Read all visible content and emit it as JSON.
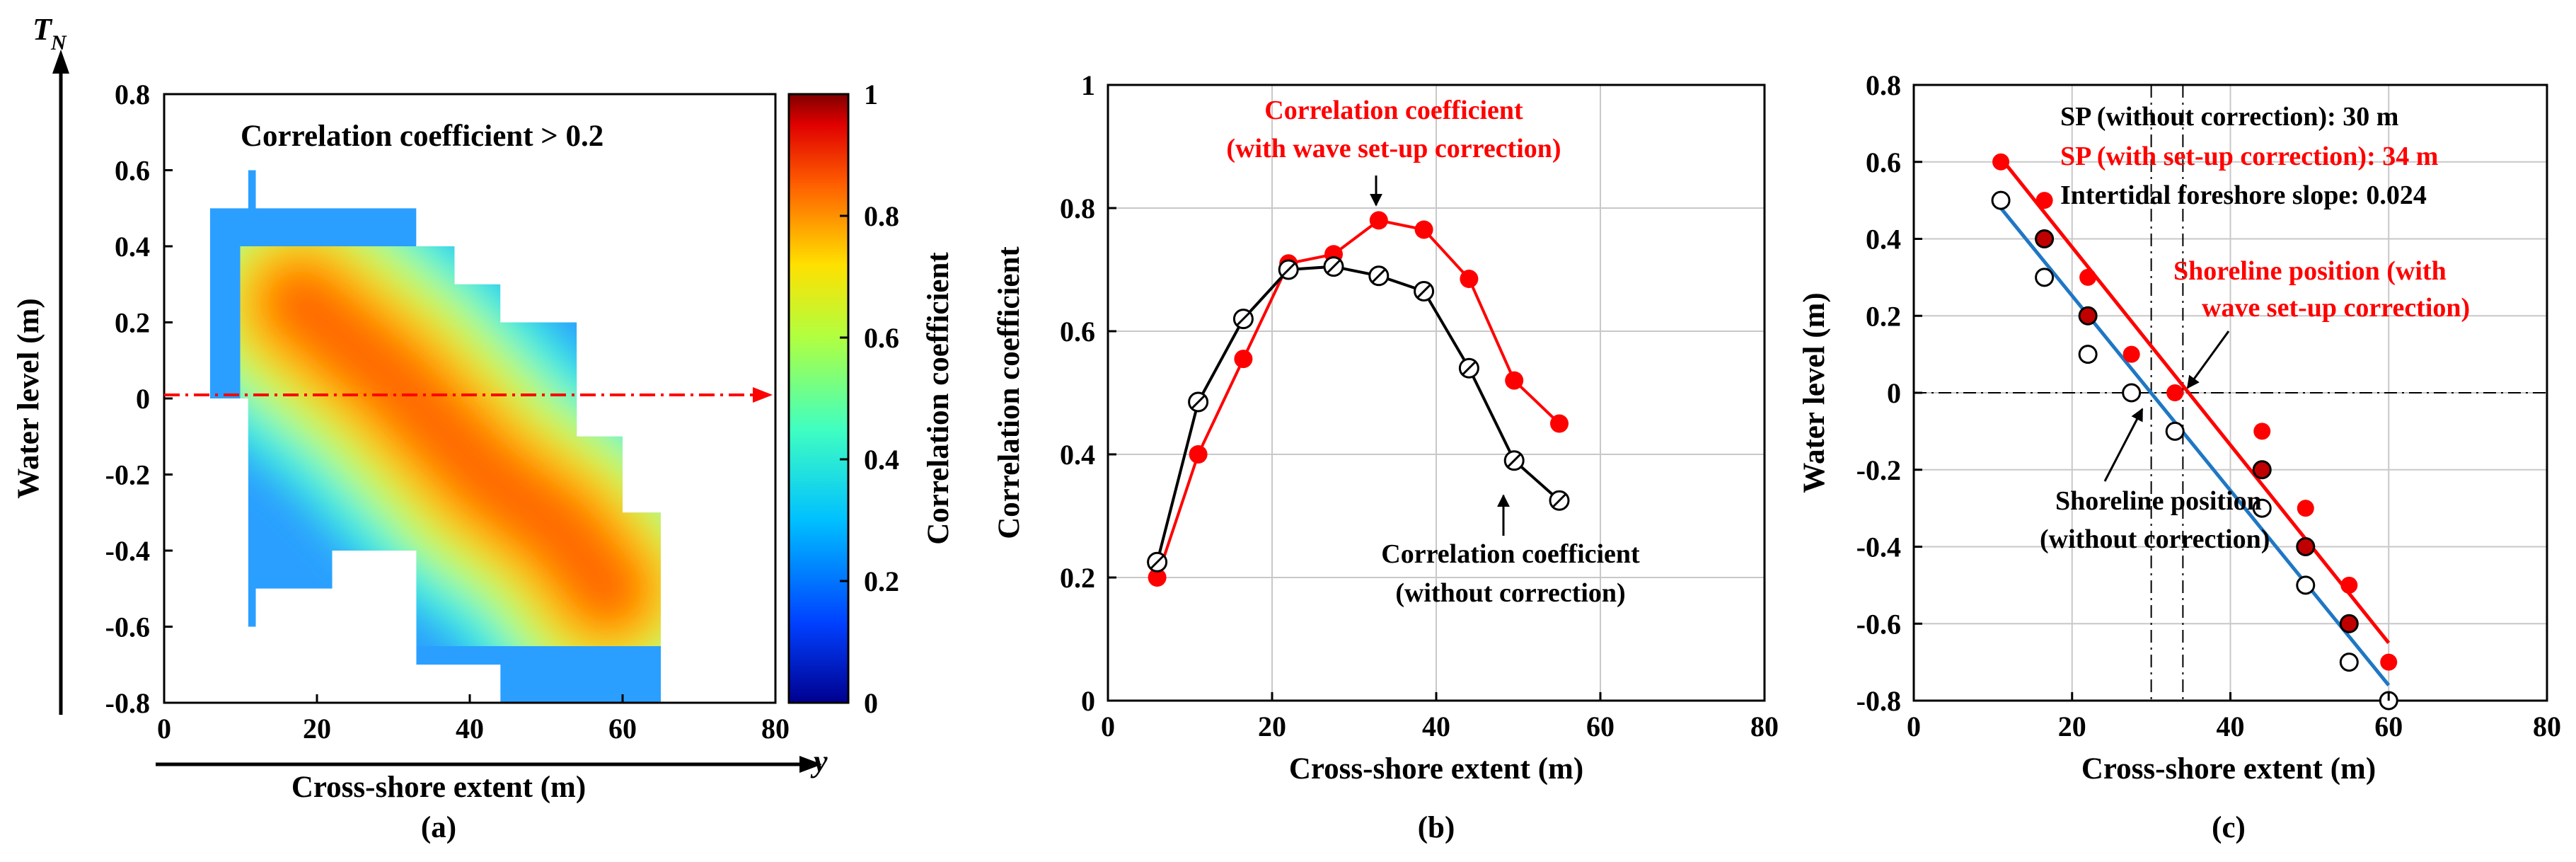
{
  "chart_data": [
    {
      "panel": "(a)",
      "type": "heatmap",
      "title": "Correlation coefficient > 0.2",
      "xlabel": "Cross-shore extent (m)",
      "ylabel": "Water level (m)",
      "x_axis_symbol": "y",
      "y_axis_symbol": "T",
      "y_axis_symbol_sub": "N",
      "xlim": [
        0,
        80
      ],
      "ylim": [
        -0.8,
        0.8
      ],
      "xticks": [
        "0",
        "20",
        "40",
        "60",
        "80"
      ],
      "yticks": [
        "0.8",
        "0.6",
        "0.4",
        "0.2",
        "0",
        "-0.2",
        "-0.4",
        "-0.6",
        "-0.8"
      ],
      "reference_line_y": 0,
      "colorbar": {
        "label": "Correlation coefficient",
        "range": [
          0,
          1
        ],
        "ticks": [
          "0",
          "0.2",
          "0.4",
          "0.6",
          "0.8",
          "1"
        ],
        "colormap": [
          "#00008f",
          "#0050ff",
          "#00dfff",
          "#70ff8f",
          "#ffe000",
          "#ff6000",
          "#d00000",
          "#800000"
        ]
      },
      "extent_by_column": [
        {
          "x": [
            6,
            11
          ],
          "y": [
            0.0,
            0.5
          ]
        },
        {
          "x": [
            11,
            12
          ],
          "y": [
            -0.6,
            0.6
          ]
        },
        {
          "x": [
            12,
            22
          ],
          "y": [
            -0.5,
            0.5
          ]
        },
        {
          "x": [
            22,
            33
          ],
          "y": [
            -0.4,
            0.5
          ]
        },
        {
          "x": [
            33,
            38
          ],
          "y": [
            -0.7,
            0.4
          ]
        },
        {
          "x": [
            38,
            44
          ],
          "y": [
            -0.7,
            0.3
          ]
        },
        {
          "x": [
            44,
            54
          ],
          "y": [
            -0.8,
            0.2
          ]
        },
        {
          "x": [
            54,
            60
          ],
          "y": [
            -0.8,
            -0.1
          ]
        },
        {
          "x": [
            60,
            65
          ],
          "y": [
            -0.8,
            -0.3
          ]
        }
      ],
      "ridge_of_max_correlation": {
        "x": [
          18,
          30,
          42,
          52,
          58
        ],
        "y": [
          0.25,
          0.05,
          -0.2,
          -0.35,
          -0.5
        ],
        "value_approx": 0.8
      }
    },
    {
      "panel": "(b)",
      "type": "line",
      "xlabel": "Cross-shore extent (m)",
      "ylabel": "Correlation coefficient",
      "xlim": [
        0,
        80
      ],
      "ylim": [
        0,
        1
      ],
      "xticks": [
        "0",
        "20",
        "40",
        "60",
        "80"
      ],
      "yticks": [
        "0",
        "0.2",
        "0.4",
        "0.6",
        "0.8",
        "1"
      ],
      "series": [
        {
          "name": "Correlation coefficient (with wave set-up correction)",
          "color": "#ff0000",
          "marker": "filled-circle",
          "x": [
            6,
            11,
            16.5,
            22,
            27.5,
            33,
            38.5,
            44,
            49.5,
            55
          ],
          "y": [
            0.2,
            0.4,
            0.555,
            0.71,
            0.725,
            0.78,
            0.765,
            0.685,
            0.52,
            0.45
          ]
        },
        {
          "name": "Correlation coefficient (without correction)",
          "color": "#000000",
          "marker": "open-diamond-circle",
          "x": [
            6,
            11,
            16.5,
            22,
            27.5,
            33,
            38.5,
            44,
            49.5,
            55
          ],
          "y": [
            0.225,
            0.485,
            0.62,
            0.7,
            0.705,
            0.69,
            0.665,
            0.54,
            0.39,
            0.325
          ]
        }
      ],
      "annotations": [
        {
          "line1": "Correlation coefficient",
          "line2": "(with wave set-up correction)",
          "color": "#ff0000"
        },
        {
          "line1": "Correlation coefficient",
          "line2": "(without correction)",
          "color": "#000000"
        }
      ]
    },
    {
      "panel": "(c)",
      "type": "scatter",
      "xlabel": "Cross-shore extent (m)",
      "ylabel": "Water level (m)",
      "xlim": [
        0,
        80
      ],
      "ylim": [
        -0.8,
        0.8
      ],
      "xticks": [
        "0",
        "20",
        "40",
        "60",
        "80"
      ],
      "yticks": [
        "0.8",
        "0.6",
        "0.4",
        "0.2",
        "0",
        "-0.2",
        "-0.4",
        "-0.6",
        "-0.8"
      ],
      "series": [
        {
          "name": "with set-up correction",
          "color": "#ff0000",
          "marker": "filled-circle",
          "x": [
            11,
            16.5,
            22,
            27.5,
            33,
            44,
            49.5,
            55,
            60
          ],
          "y": [
            0.6,
            0.5,
            0.3,
            0.1,
            0.0,
            -0.1,
            -0.3,
            -0.5,
            -0.7
          ]
        },
        {
          "name": "without correction",
          "color": "#000000",
          "marker": "open-circle",
          "x": [
            11,
            16.5,
            22,
            27.5,
            33,
            44,
            49.5,
            55,
            60
          ],
          "y": [
            0.5,
            0.3,
            0.1,
            0.0,
            -0.1,
            -0.3,
            -0.5,
            -0.7,
            -0.8
          ]
        },
        {
          "name": "overlap points",
          "color": "#c00000",
          "marker": "filled-circle-ring",
          "x": [
            16.5,
            22,
            44,
            49.5,
            55
          ],
          "y": [
            0.4,
            0.2,
            -0.2,
            -0.4,
            -0.6
          ]
        }
      ],
      "fit_lines": [
        {
          "name": "with set-up correction fit",
          "color": "#ff0000",
          "x": [
            11,
            60
          ],
          "y": [
            0.61,
            -0.65
          ]
        },
        {
          "name": "without correction fit",
          "color": "#1f77c4",
          "x": [
            11,
            60
          ],
          "y": [
            0.48,
            -0.76
          ]
        }
      ],
      "reference_lines": {
        "horizontal_y": 0,
        "vertical_x": [
          30,
          34
        ]
      },
      "legend_text": [
        {
          "text": "SP (without correction): 30 m",
          "color": "#000000"
        },
        {
          "text": "SP (with set-up correction): 34 m",
          "color": "#ff0000"
        },
        {
          "text": "Intertidal foreshore slope: 0.024",
          "color": "#000000"
        }
      ],
      "annotations": [
        {
          "line1": "Shoreline position (with",
          "line2": "wave set-up correction)",
          "color": "#ff0000"
        },
        {
          "line1": "Shoreline position",
          "line2": "(without correction)",
          "color": "#000000"
        }
      ]
    }
  ],
  "captions": {
    "a": "(a)",
    "b": "(b)",
    "c": "(c)"
  }
}
